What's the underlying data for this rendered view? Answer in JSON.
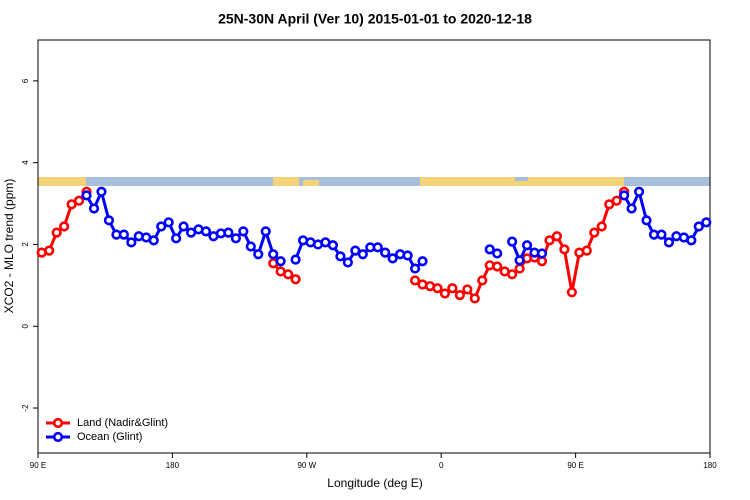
{
  "chart_data": {
    "type": "line",
    "title": "25N-30N April (Ver 10)   2015-01-01 to 2020-12-18",
    "x_label": "Longitude (deg E)",
    "y_label": "XCO2 - MLO trend (ppm)",
    "x": [
      92.5,
      97.5,
      102.5,
      107.5,
      112.5,
      117.5,
      122.5,
      127.5,
      132.5,
      137.5,
      142.5,
      147.5,
      152.5,
      157.5,
      162.5,
      167.5,
      172.5,
      177.5,
      182.5,
      187.5,
      192.5,
      197.5,
      202.5,
      207.5,
      212.5,
      217.5,
      222.5,
      227.5,
      232.5,
      237.5,
      242.5,
      247.5,
      252.5,
      257.5,
      262.5,
      267.5,
      272.5,
      277.5,
      282.5,
      287.5,
      292.5,
      297.5,
      302.5,
      307.5,
      312.5,
      317.5,
      322.5,
      327.5,
      332.5,
      337.5,
      342.5,
      347.5,
      352.5,
      357.5,
      362.5,
      367.5,
      372.5,
      377.5,
      382.5,
      387.5,
      392.5,
      397.5,
      402.5,
      407.5,
      412.5,
      417.5,
      422.5,
      427.5,
      432.5,
      437.5,
      442.5,
      447.5,
      452.5,
      457.5,
      462.5,
      467.5,
      472.5,
      477.5,
      482.5,
      487.5,
      492.5,
      497.5,
      502.5,
      507.5,
      512.5,
      517.5,
      522.5,
      527.5,
      532.5,
      537.5
    ],
    "series": [
      {
        "name": "Land (Nadir&Glint)",
        "color": "#ff0000",
        "values": [
          1.8,
          1.85,
          2.29,
          2.44,
          2.98,
          3.07,
          3.29,
          null,
          null,
          null,
          null,
          null,
          null,
          null,
          null,
          null,
          null,
          null,
          null,
          null,
          null,
          null,
          null,
          null,
          null,
          null,
          null,
          null,
          null,
          null,
          null,
          1.54,
          1.34,
          1.27,
          1.15,
          null,
          null,
          null,
          null,
          null,
          null,
          null,
          null,
          null,
          null,
          null,
          null,
          null,
          null,
          null,
          1.12,
          1.02,
          0.98,
          0.93,
          0.8,
          0.93,
          0.76,
          0.9,
          0.68,
          1.12,
          1.49,
          1.46,
          1.34,
          1.27,
          1.41,
          1.66,
          1.68,
          1.59,
          2.1,
          2.2,
          1.88,
          0.83,
          1.8,
          1.85,
          2.29,
          2.44,
          2.98,
          3.07,
          3.29,
          null,
          null,
          null,
          null,
          null,
          null,
          null,
          null,
          null,
          null,
          null
        ]
      },
      {
        "name": "Ocean (Glint)",
        "color": "#0000ff",
        "values": [
          null,
          null,
          null,
          null,
          null,
          null,
          3.2,
          2.88,
          3.29,
          2.59,
          2.24,
          2.24,
          2.05,
          2.2,
          2.17,
          2.1,
          2.44,
          2.54,
          2.15,
          2.44,
          2.29,
          2.37,
          2.32,
          2.2,
          2.27,
          2.29,
          2.15,
          2.32,
          1.95,
          1.76,
          2.32,
          1.76,
          1.59,
          null,
          1.63,
          2.1,
          2.05,
          2.0,
          2.05,
          1.98,
          1.71,
          1.56,
          1.85,
          1.76,
          1.93,
          1.93,
          1.8,
          1.66,
          1.76,
          1.73,
          1.41,
          1.59,
          null,
          null,
          null,
          null,
          null,
          null,
          null,
          null,
          1.88,
          1.78,
          null,
          2.07,
          1.61,
          1.98,
          1.8,
          1.78,
          null,
          null,
          null,
          null,
          null,
          null,
          null,
          null,
          null,
          null,
          3.2,
          2.88,
          3.29,
          2.59,
          2.24,
          2.24,
          2.05,
          2.2,
          2.17,
          2.1,
          2.44,
          2.54
        ]
      }
    ],
    "xlim": [
      90,
      540
    ],
    "xticks": [
      {
        "value": 90,
        "label": "90 E"
      },
      180,
      {
        "value": 270,
        "label": "90 W"
      },
      {
        "value": 360,
        "label": "0"
      },
      {
        "value": 450,
        "label": "90 E"
      },
      {
        "value": 540,
        "label": "180"
      }
    ],
    "ylim": [
      -3.1,
      7
    ],
    "yticks": [
      -2,
      0,
      2,
      4,
      6
    ],
    "legend": "bottomleft"
  }
}
